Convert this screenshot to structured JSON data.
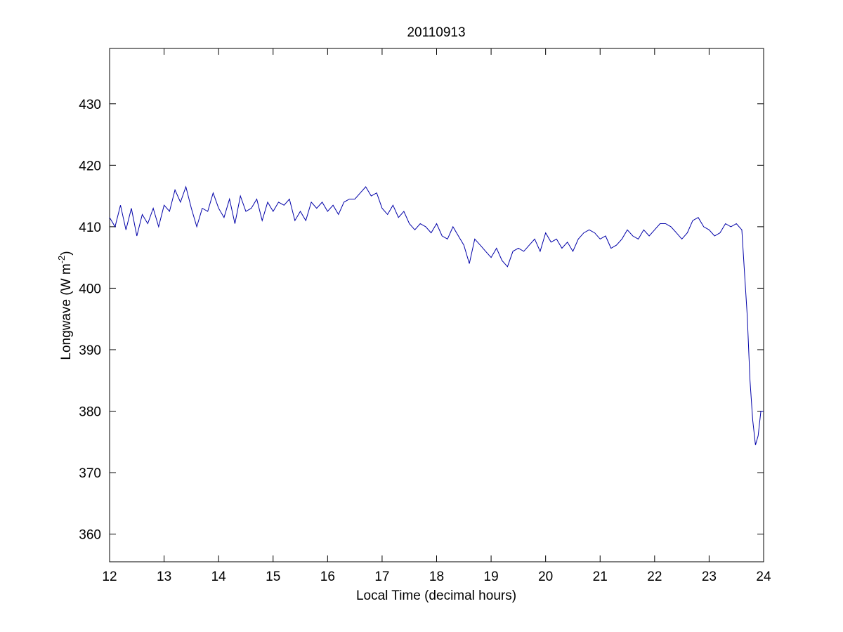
{
  "chart_data": {
    "type": "line",
    "title": "20110913",
    "xlabel": "Local Time (decimal hours)",
    "ylabel_main": "Longwave (W m",
    "ylabel_sup": "-2",
    "ylabel_close": ")",
    "xlim": [
      12,
      24
    ],
    "ylim": [
      355.5,
      439
    ],
    "xticks": [
      12,
      13,
      14,
      15,
      16,
      17,
      18,
      19,
      20,
      21,
      22,
      23,
      24
    ],
    "yticks": [
      360,
      370,
      380,
      390,
      400,
      410,
      420,
      430
    ],
    "grid": false,
    "color": "#0000a8",
    "series": [
      {
        "x": [
          12.0,
          12.1,
          12.2,
          12.3,
          12.4,
          12.5,
          12.6,
          12.7,
          12.8,
          12.9,
          13.0,
          13.1,
          13.2,
          13.3,
          13.4,
          13.5,
          13.6,
          13.7,
          13.8,
          13.9,
          14.0,
          14.1,
          14.2,
          14.3,
          14.4,
          14.5,
          14.6,
          14.7,
          14.8,
          14.9,
          15.0,
          15.1,
          15.2,
          15.3,
          15.4,
          15.5,
          15.6,
          15.7,
          15.8,
          15.9,
          16.0,
          16.1,
          16.2,
          16.3,
          16.4,
          16.5,
          16.6,
          16.7,
          16.8,
          16.9,
          17.0,
          17.1,
          17.2,
          17.3,
          17.4,
          17.5,
          17.6,
          17.7,
          17.8,
          17.9,
          18.0,
          18.1,
          18.2,
          18.3,
          18.4,
          18.5,
          18.6,
          18.7,
          18.8,
          18.9,
          19.0,
          19.1,
          19.2,
          19.3,
          19.4,
          19.5,
          19.6,
          19.7,
          19.8,
          19.9,
          20.0,
          20.1,
          20.2,
          20.3,
          20.4,
          20.5,
          20.6,
          20.7,
          20.8,
          20.9,
          21.0,
          21.1,
          21.2,
          21.3,
          21.4,
          21.5,
          21.6,
          21.7,
          21.8,
          21.9,
          22.0,
          22.1,
          22.2,
          22.3,
          22.4,
          22.5,
          22.6,
          22.7,
          22.8,
          22.9,
          23.0,
          23.1,
          23.2,
          23.3,
          23.4,
          23.5,
          23.6,
          23.65,
          23.7,
          23.75,
          23.8,
          23.85,
          23.9,
          23.95,
          24.0
        ],
        "y": [
          411.5,
          410.0,
          413.5,
          409.5,
          413.0,
          408.5,
          412.0,
          410.5,
          413.0,
          410.0,
          413.5,
          412.5,
          416.0,
          414.0,
          416.5,
          413.0,
          410.0,
          413.0,
          412.5,
          415.5,
          413.0,
          411.5,
          414.5,
          410.5,
          415.0,
          412.5,
          413.0,
          414.5,
          411.0,
          414.0,
          412.5,
          414.0,
          413.5,
          414.5,
          411.0,
          412.5,
          411.0,
          414.0,
          413.0,
          414.0,
          412.5,
          413.5,
          412.0,
          414.0,
          414.5,
          414.5,
          415.5,
          416.5,
          415.0,
          415.5,
          413.0,
          412.0,
          413.5,
          411.5,
          412.5,
          410.5,
          409.5,
          410.5,
          410.0,
          409.0,
          410.5,
          408.5,
          408.0,
          410.0,
          408.5,
          407.0,
          404.0,
          408.0,
          407.0,
          406.0,
          405.0,
          406.5,
          404.5,
          403.5,
          406.0,
          406.5,
          406.0,
          407.0,
          408.0,
          406.0,
          409.0,
          407.5,
          408.0,
          406.5,
          407.5,
          406.0,
          408.0,
          409.0,
          409.5,
          409.0,
          408.0,
          408.5,
          406.5,
          407.0,
          408.0,
          409.5,
          408.5,
          408.0,
          409.5,
          408.5,
          409.5,
          410.5,
          410.5,
          410.0,
          409.0,
          408.0,
          409.0,
          411.0,
          411.5,
          410.0,
          409.5,
          408.5,
          409.0,
          410.5,
          410.0,
          410.5,
          409.5,
          402.5,
          395.5,
          385.0,
          378.5,
          374.5,
          376.0,
          380.0,
          380.0
        ]
      }
    ]
  }
}
